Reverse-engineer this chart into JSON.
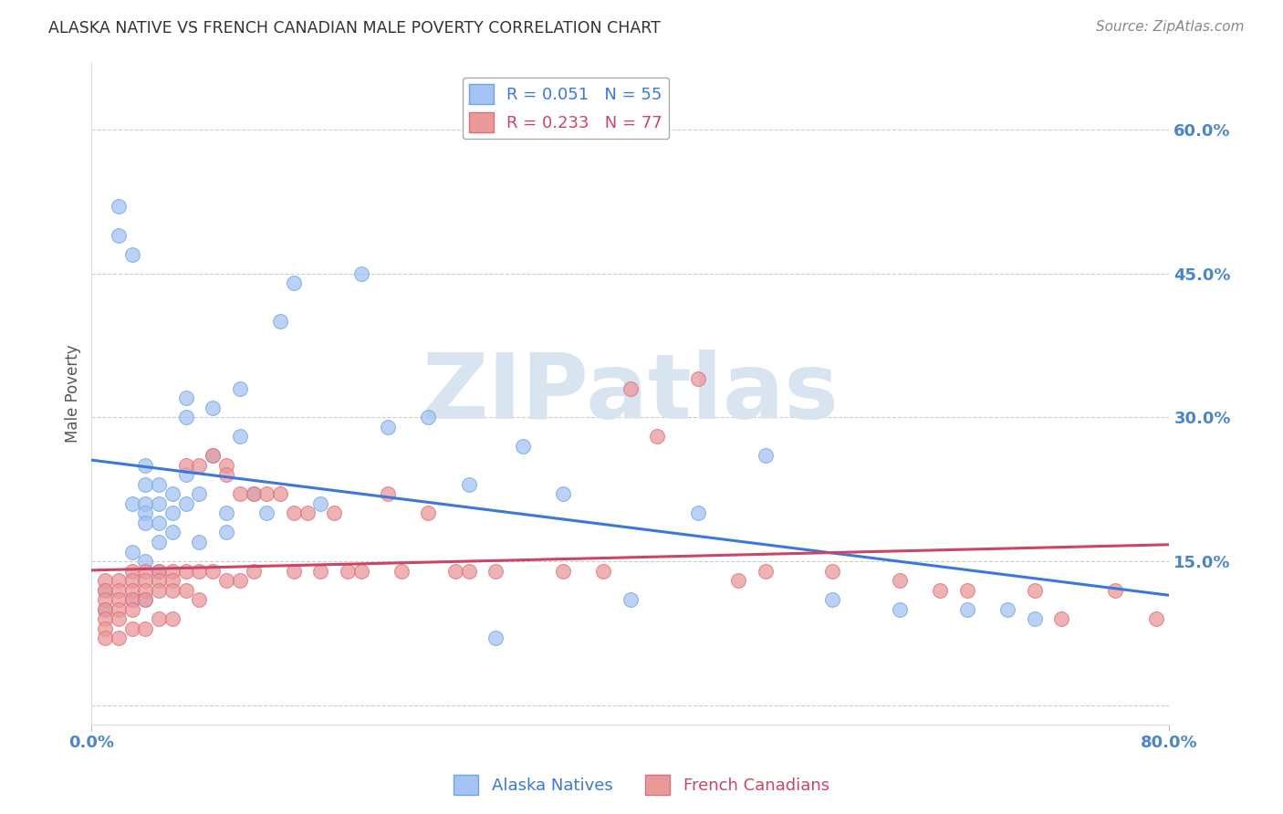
{
  "title": "ALASKA NATIVE VS FRENCH CANADIAN MALE POVERTY CORRELATION CHART",
  "source": "Source: ZipAtlas.com",
  "ylabel": "Male Poverty",
  "yticks": [
    0.0,
    0.15,
    0.3,
    0.45,
    0.6
  ],
  "ytick_labels": [
    "",
    "15.0%",
    "30.0%",
    "45.0%",
    "60.0%"
  ],
  "xlim": [
    0.0,
    0.8
  ],
  "ylim": [
    -0.02,
    0.67
  ],
  "legend_entry_1": "R = 0.051   N = 55",
  "legend_entry_2": "R = 0.233   N = 77",
  "alaska_native_x": [
    0.01,
    0.01,
    0.02,
    0.02,
    0.03,
    0.03,
    0.03,
    0.03,
    0.04,
    0.04,
    0.04,
    0.04,
    0.04,
    0.04,
    0.04,
    0.05,
    0.05,
    0.05,
    0.05,
    0.05,
    0.06,
    0.06,
    0.06,
    0.07,
    0.07,
    0.07,
    0.07,
    0.08,
    0.08,
    0.09,
    0.09,
    0.1,
    0.1,
    0.11,
    0.11,
    0.12,
    0.13,
    0.14,
    0.15,
    0.17,
    0.2,
    0.22,
    0.25,
    0.28,
    0.3,
    0.32,
    0.35,
    0.4,
    0.45,
    0.5,
    0.55,
    0.6,
    0.65,
    0.68,
    0.7
  ],
  "alaska_native_y": [
    0.12,
    0.1,
    0.52,
    0.49,
    0.47,
    0.21,
    0.16,
    0.11,
    0.25,
    0.23,
    0.21,
    0.2,
    0.19,
    0.15,
    0.11,
    0.23,
    0.21,
    0.19,
    0.17,
    0.14,
    0.22,
    0.2,
    0.18,
    0.32,
    0.3,
    0.24,
    0.21,
    0.22,
    0.17,
    0.31,
    0.26,
    0.2,
    0.18,
    0.33,
    0.28,
    0.22,
    0.2,
    0.4,
    0.44,
    0.21,
    0.45,
    0.29,
    0.3,
    0.23,
    0.07,
    0.27,
    0.22,
    0.11,
    0.2,
    0.26,
    0.11,
    0.1,
    0.1,
    0.1,
    0.09
  ],
  "french_canadian_x": [
    0.01,
    0.01,
    0.01,
    0.01,
    0.01,
    0.01,
    0.01,
    0.02,
    0.02,
    0.02,
    0.02,
    0.02,
    0.02,
    0.03,
    0.03,
    0.03,
    0.03,
    0.03,
    0.03,
    0.04,
    0.04,
    0.04,
    0.04,
    0.04,
    0.05,
    0.05,
    0.05,
    0.05,
    0.06,
    0.06,
    0.06,
    0.06,
    0.07,
    0.07,
    0.07,
    0.08,
    0.08,
    0.08,
    0.09,
    0.09,
    0.1,
    0.1,
    0.1,
    0.11,
    0.11,
    0.12,
    0.12,
    0.13,
    0.14,
    0.15,
    0.15,
    0.16,
    0.17,
    0.18,
    0.19,
    0.2,
    0.22,
    0.23,
    0.25,
    0.27,
    0.28,
    0.3,
    0.35,
    0.38,
    0.4,
    0.42,
    0.45,
    0.48,
    0.5,
    0.55,
    0.6,
    0.63,
    0.65,
    0.7,
    0.72,
    0.76,
    0.79
  ],
  "french_canadian_y": [
    0.13,
    0.12,
    0.11,
    0.1,
    0.09,
    0.08,
    0.07,
    0.13,
    0.12,
    0.11,
    0.1,
    0.09,
    0.07,
    0.14,
    0.13,
    0.12,
    0.11,
    0.1,
    0.08,
    0.14,
    0.13,
    0.12,
    0.11,
    0.08,
    0.14,
    0.13,
    0.12,
    0.09,
    0.14,
    0.13,
    0.12,
    0.09,
    0.25,
    0.14,
    0.12,
    0.25,
    0.14,
    0.11,
    0.26,
    0.14,
    0.25,
    0.24,
    0.13,
    0.22,
    0.13,
    0.22,
    0.14,
    0.22,
    0.22,
    0.2,
    0.14,
    0.2,
    0.14,
    0.2,
    0.14,
    0.14,
    0.22,
    0.14,
    0.2,
    0.14,
    0.14,
    0.14,
    0.14,
    0.14,
    0.33,
    0.28,
    0.34,
    0.13,
    0.14,
    0.14,
    0.13,
    0.12,
    0.12,
    0.12,
    0.09,
    0.12,
    0.09
  ],
  "alaska_color": "#a4c2f4",
  "french_color": "#ea9999",
  "alaska_edge_color": "#6fa8dc",
  "french_edge_color": "#e06c7c",
  "alaska_line_color": "#3c78d8",
  "french_line_color": "#cc4466",
  "background_color": "#ffffff",
  "grid_color": "#cccccc",
  "axis_color": "#4a86c8",
  "title_color": "#333333",
  "watermark": "ZIPatlas",
  "watermark_color": "#d8e4f0"
}
